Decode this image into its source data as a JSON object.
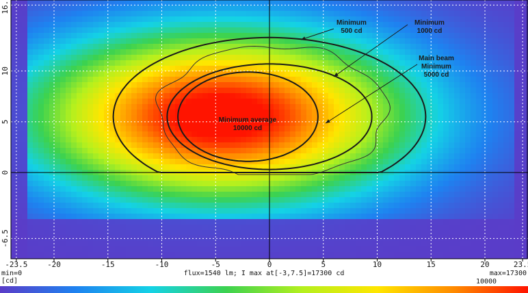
{
  "chart_data": {
    "type": "heatmap",
    "title": "",
    "xlabel": "",
    "ylabel": "",
    "xlim": [
      -24,
      24
    ],
    "ylim": [
      -8.5,
      17
    ],
    "x_tick_labels": [
      "-23.5",
      "-20",
      "-15",
      "-10",
      "-5",
      "0",
      "5",
      "10",
      "15",
      "20",
      "23.5"
    ],
    "x_tick_values": [
      -23.5,
      -20,
      -15,
      -10,
      -5,
      0,
      5,
      10,
      15,
      20,
      23.5
    ],
    "y_tick_labels": [
      "-6.5",
      "0",
      "5",
      "10",
      "16.5"
    ],
    "y_tick_values": [
      -6.5,
      0,
      5,
      10,
      16.5
    ],
    "grid": true,
    "peak": {
      "x": -3,
      "y": 7.5,
      "value": 17300
    },
    "contours": [
      {
        "name": "Minimum 500 cd",
        "half_width_x": 14.5,
        "center": [
          0,
          5.5
        ],
        "half_height_y": 7.8,
        "cut_at_y": 0
      },
      {
        "name": "Minimum 1000 cd",
        "half_width_x": 9.5,
        "center": [
          0,
          5.5
        ],
        "half_height_y": 5.2,
        "cut_at_y": 0
      },
      {
        "name": "Minimum 5000 cd",
        "half_width_x": 6.5,
        "center": [
          -2,
          5.5
        ],
        "half_height_y": 4.4
      }
    ],
    "annotations": [
      {
        "key": "a500",
        "lines": [
          "Minimum",
          "500 cd"
        ]
      },
      {
        "key": "a1000",
        "lines": [
          "Minimum",
          "1000 cd"
        ]
      },
      {
        "key": "a5000",
        "lines": [
          "Main beam",
          "Minimum",
          "5000 cd"
        ]
      },
      {
        "key": "aavg",
        "lines": [
          "Minimum average",
          "10000 cd"
        ]
      }
    ],
    "footer": {
      "min_label": "min=0",
      "max_label": "max=17300",
      "flux_label": "flux=1540 lm; I max at[-3,7.5]=17300 cd",
      "unit_label": "[cd]",
      "colorbar_tick_label": "10000"
    },
    "colormap": [
      "#5a3cc8",
      "#1e82f0",
      "#14d2e6",
      "#3cd250",
      "#b4f01e",
      "#ffe600",
      "#ff8c00",
      "#ff1400"
    ]
  }
}
